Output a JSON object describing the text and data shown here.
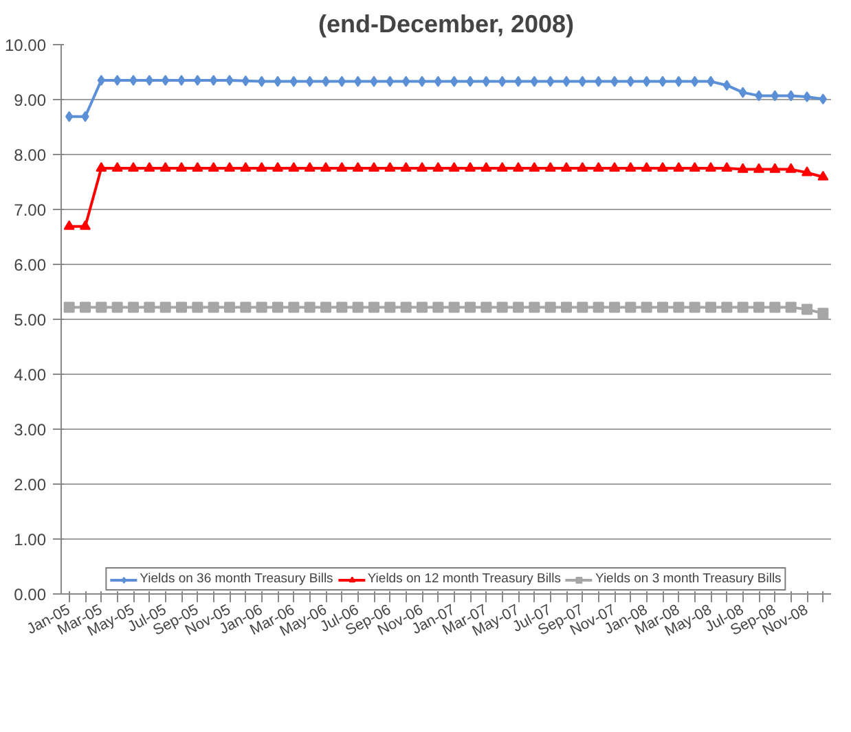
{
  "chart_data": {
    "type": "line",
    "title": "(end-December, 2008)",
    "categories": [
      "Jan-05",
      null,
      "Mar-05",
      null,
      "May-05",
      null,
      "Jul-05",
      null,
      "Sep-05",
      null,
      "Nov-05",
      null,
      "Jan-06",
      null,
      "Mar-06",
      null,
      "May-06",
      null,
      "Jul-06",
      null,
      "Sep-06",
      null,
      "Nov-06",
      null,
      "Jan-07",
      null,
      "Mar-07",
      null,
      "May-07",
      null,
      "Jul-07",
      null,
      "Sep-07",
      null,
      "Nov-07",
      null,
      "Jan-08",
      null,
      "Mar-08",
      null,
      "May-08",
      null,
      "Jul-08",
      null,
      "Sep-08",
      null,
      "Nov-08",
      null
    ],
    "series": [
      {
        "name": "Yields on 36 month Treasury Bills",
        "color": "#5b8fd6",
        "marker": "diamond",
        "values": [
          8.69,
          8.69,
          9.35,
          9.35,
          9.35,
          9.35,
          9.35,
          9.35,
          9.35,
          9.35,
          9.35,
          9.34,
          9.33,
          9.33,
          9.33,
          9.33,
          9.33,
          9.33,
          9.33,
          9.33,
          9.33,
          9.33,
          9.33,
          9.33,
          9.33,
          9.33,
          9.33,
          9.33,
          9.33,
          9.33,
          9.33,
          9.33,
          9.33,
          9.33,
          9.33,
          9.33,
          9.33,
          9.33,
          9.33,
          9.33,
          9.33,
          9.26,
          9.13,
          9.07,
          9.07,
          9.07,
          9.05,
          9.01
        ]
      },
      {
        "name": "Yields on 12 month Treasury Bills",
        "color": "#ff0000",
        "marker": "triangle",
        "values": [
          6.69,
          6.69,
          7.75,
          7.75,
          7.75,
          7.75,
          7.75,
          7.75,
          7.75,
          7.75,
          7.75,
          7.75,
          7.75,
          7.75,
          7.75,
          7.75,
          7.75,
          7.75,
          7.75,
          7.75,
          7.75,
          7.75,
          7.75,
          7.75,
          7.75,
          7.75,
          7.75,
          7.75,
          7.75,
          7.75,
          7.75,
          7.75,
          7.75,
          7.75,
          7.75,
          7.75,
          7.75,
          7.75,
          7.75,
          7.75,
          7.75,
          7.75,
          7.73,
          7.73,
          7.73,
          7.73,
          7.67,
          7.59
        ]
      },
      {
        "name": "Yields on 3 month Treasury Bills",
        "color": "#a6a6a6",
        "marker": "square",
        "values": [
          5.22,
          5.22,
          5.22,
          5.22,
          5.22,
          5.22,
          5.22,
          5.22,
          5.22,
          5.22,
          5.22,
          5.22,
          5.22,
          5.22,
          5.22,
          5.22,
          5.22,
          5.22,
          5.22,
          5.22,
          5.22,
          5.22,
          5.22,
          5.22,
          5.22,
          5.22,
          5.22,
          5.22,
          5.22,
          5.22,
          5.22,
          5.22,
          5.22,
          5.22,
          5.22,
          5.22,
          5.22,
          5.22,
          5.22,
          5.22,
          5.22,
          5.22,
          5.22,
          5.22,
          5.22,
          5.22,
          5.18,
          5.11
        ]
      }
    ],
    "ylim": [
      0,
      10
    ],
    "yticks": [
      {
        "value": 0,
        "label": "0.00"
      },
      {
        "value": 1,
        "label": "1.00"
      },
      {
        "value": 2,
        "label": "2.00"
      },
      {
        "value": 3,
        "label": "3.00"
      },
      {
        "value": 4,
        "label": "4.00"
      },
      {
        "value": 5,
        "label": "5.00"
      },
      {
        "value": 6,
        "label": "6.00"
      },
      {
        "value": 7,
        "label": "7.00"
      },
      {
        "value": 8,
        "label": "8.00"
      },
      {
        "value": 9,
        "label": "9.00"
      },
      {
        "value": 10,
        "label": "10.00"
      }
    ],
    "grid": "y",
    "legend": "bottom",
    "line_style": "solid"
  }
}
